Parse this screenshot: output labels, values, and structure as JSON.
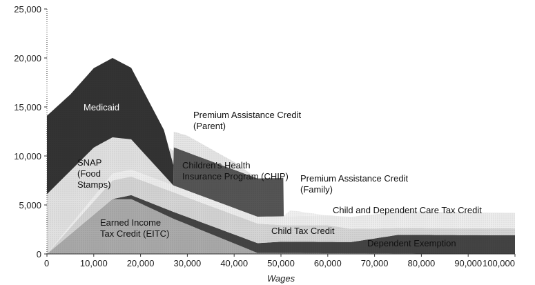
{
  "chart_data": {
    "type": "area",
    "stacked": true,
    "xlabel": "Wages",
    "ylabel": "",
    "xlim": [
      0,
      100000
    ],
    "ylim": [
      0,
      25000
    ],
    "x_ticks": [
      0,
      10000,
      20000,
      30000,
      40000,
      50000,
      60000,
      70000,
      80000,
      90000,
      100000
    ],
    "x_tick_labels": [
      "0",
      "10,000",
      "20,000",
      "30,000",
      "40,000",
      "50,000",
      "60,000",
      "70,000",
      "80,000",
      "90,000",
      "100,000"
    ],
    "y_ticks": [
      0,
      5000,
      10000,
      15000,
      20000,
      25000
    ],
    "y_tick_labels": [
      "0",
      "5,000",
      "10,000",
      "15,000",
      "20,000",
      "25,000"
    ],
    "grid": false,
    "legend": "none",
    "series": [
      {
        "name": "Earned Income Tax Credit (EITC)",
        "label_lines": [
          "Earned Income",
          "Tax Credit (EITC)"
        ],
        "color": "#aaaaaa",
        "label_light": false,
        "points": [
          [
            0,
            0
          ],
          [
            14000,
            5600
          ],
          [
            18000,
            5600
          ],
          [
            27000,
            3600
          ],
          [
            45000,
            100
          ],
          [
            100000,
            0
          ]
        ]
      },
      {
        "name": "Dependent Exemption",
        "label_lines": [
          "Dependent Exemption"
        ],
        "color": "#444444",
        "label_light": false,
        "points": [
          [
            0,
            0
          ],
          [
            14000,
            0
          ],
          [
            18000,
            400
          ],
          [
            27000,
            700
          ],
          [
            45000,
            1000
          ],
          [
            50000,
            1150
          ],
          [
            65000,
            1150
          ],
          [
            75000,
            1900
          ],
          [
            100000,
            1900
          ]
        ]
      },
      {
        "name": "Child Tax Credit",
        "label_lines": [
          "Child Tax Credit"
        ],
        "color": "#d4d4d4",
        "label_light": false,
        "points": [
          [
            0,
            0
          ],
          [
            14000,
            1900
          ],
          [
            18000,
            1900
          ],
          [
            27000,
            2000
          ],
          [
            45000,
            2000
          ],
          [
            50000,
            1700
          ],
          [
            60000,
            1700
          ],
          [
            70000,
            1000
          ],
          [
            75000,
            700
          ],
          [
            100000,
            700
          ]
        ]
      },
      {
        "name": "Child and Dependent Care Tax Credit",
        "label_lines": [
          "Child and Dependent Care Tax Credit"
        ],
        "color": "#ededed",
        "label_light": false,
        "points": [
          [
            0,
            0
          ],
          [
            14000,
            700
          ],
          [
            18000,
            700
          ],
          [
            27000,
            700
          ],
          [
            45000,
            700
          ],
          [
            50000,
            900
          ],
          [
            60000,
            1000
          ],
          [
            75000,
            1700
          ],
          [
            100000,
            1600
          ]
        ]
      },
      {
        "name": "SNAP (Food Stamps)",
        "label_lines": [
          "SNAP",
          "(Food",
          "Stamps)"
        ],
        "color": "#e0e0e0",
        "label_light": false,
        "points": [
          [
            0,
            6100
          ],
          [
            10000,
            5000
          ],
          [
            14000,
            3700
          ],
          [
            18000,
            3100
          ],
          [
            27000,
            0
          ],
          [
            100000,
            0
          ]
        ]
      },
      {
        "name": "Children's Health Insurance Program (CHIP)",
        "label_lines": [
          "Children's Health",
          "Insurance Program (CHIP)"
        ],
        "color": "#555555",
        "label_light": false,
        "points": [
          [
            0,
            0
          ],
          [
            27000,
            0
          ],
          [
            27100,
            3900
          ],
          [
            45000,
            3900
          ],
          [
            50500,
            3900
          ],
          [
            50600,
            0
          ],
          [
            100000,
            0
          ]
        ]
      },
      {
        "name": "Medicaid",
        "label_lines": [
          "Medicaid"
        ],
        "color": "#333333",
        "label_light": true,
        "points": [
          [
            0,
            8000
          ],
          [
            5000,
            7800
          ],
          [
            10000,
            8100
          ],
          [
            14000,
            8100
          ],
          [
            18000,
            7300
          ],
          [
            25000,
            4600
          ],
          [
            27000,
            2100
          ],
          [
            27100,
            0
          ],
          [
            100000,
            0
          ]
        ]
      },
      {
        "name": "Premium Assistance Credit (Parent)",
        "label_lines": [
          "Premium Assistance Credit",
          "(Parent)"
        ],
        "color": "#e6e6e6",
        "label_light": false,
        "points": [
          [
            0,
            0
          ],
          [
            26000,
            0
          ],
          [
            27100,
            1600
          ],
          [
            30000,
            1700
          ],
          [
            40000,
            800
          ],
          [
            45000,
            0
          ],
          [
            100000,
            0
          ]
        ]
      },
      {
        "name": "Premium Assistance Credit (Family)",
        "label_lines": [
          "Premium Assistance Credit",
          "(Family)"
        ],
        "color": "#f2f2f2",
        "label_light": false,
        "points": [
          [
            0,
            0
          ],
          [
            45000,
            0
          ],
          [
            50500,
            0
          ],
          [
            52000,
            600
          ],
          [
            60000,
            0
          ],
          [
            100000,
            0
          ]
        ]
      }
    ]
  }
}
